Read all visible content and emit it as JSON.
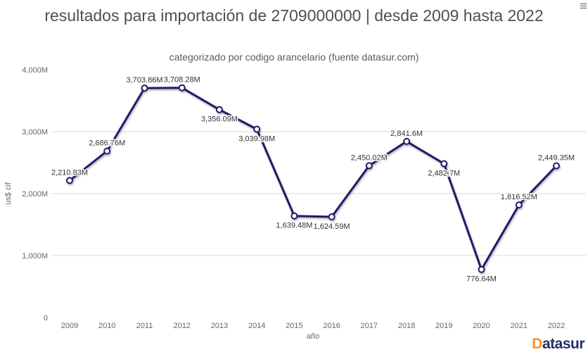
{
  "header": {
    "title": "resultados para importación de 2709000000 | desde 2009 hasta 2022",
    "subtitle": "categorizado por codigo arancelario (fuente datasur.com)"
  },
  "chart_data": {
    "type": "line",
    "x": [
      "2009",
      "2010",
      "2011",
      "2012",
      "2013",
      "2014",
      "2015",
      "2016",
      "2017",
      "2018",
      "2019",
      "2020",
      "2021",
      "2022"
    ],
    "series": [
      {
        "name": "us$ cif",
        "values": [
          2210.83,
          2686.76,
          3703.86,
          3708.28,
          3356.09,
          3039.98,
          1639.48,
          1624.59,
          2450.02,
          2841.6,
          2482.7,
          776.64,
          1816.52,
          2449.35
        ]
      }
    ],
    "point_labels": [
      "2,210.83M",
      "2,686.76M",
      "3,703.86M",
      "3,708.28M",
      "3,356.09M",
      "3,039.98M",
      "1,639.48M",
      "1,624.59M",
      "2,450.02M",
      "2,841.6M",
      "2,482.7M",
      "776.64M",
      "1,816.52M",
      "2,449.35M"
    ],
    "label_position": [
      "above",
      "above",
      "above",
      "above",
      "below",
      "below",
      "below",
      "below",
      "above",
      "above",
      "below",
      "below",
      "above",
      "above"
    ],
    "title": "resultados para importación de 2709000000 | desde 2009 hasta 2022",
    "subtitle": "categorizado por codigo arancelario (fuente datasur.com)",
    "xlabel": "año",
    "ylabel": "us$ cif",
    "ylim": [
      0,
      4000
    ],
    "yticks": [
      {
        "value": 0,
        "label": "0"
      },
      {
        "value": 1000,
        "label": "1,000M"
      },
      {
        "value": 2000,
        "label": "2,000M"
      },
      {
        "value": 3000,
        "label": "3,000M"
      },
      {
        "value": 4000,
        "label": "4,000M"
      }
    ],
    "grid_values": [
      1000,
      2000,
      3000
    ],
    "grid_on": true,
    "legend_position": "none",
    "line_color": "#1a1a68",
    "marker_fill": "#ffffff",
    "grid_color": "#d8d8d8",
    "label_color": "#333333",
    "tick_color": "#666666"
  },
  "branding": {
    "logo_d": "D",
    "logo_rest": "atasur",
    "d_color": "#f6921e",
    "text_color": "#232e63"
  }
}
